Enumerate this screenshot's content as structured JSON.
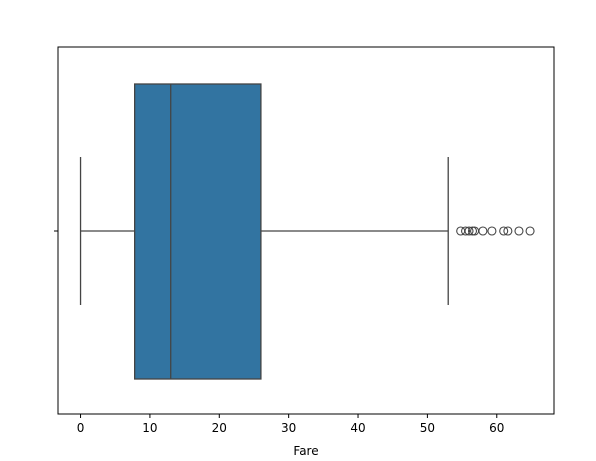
{
  "chart_data": {
    "type": "box",
    "xlabel": "Fare",
    "xlim": [
      -3.25,
      68.25
    ],
    "xticks": [
      0,
      10,
      20,
      30,
      40,
      50,
      60
    ],
    "color": "#3274a1",
    "line_color": "#444444",
    "whislo": 0,
    "q1": 7.8,
    "med": 13,
    "q3": 26,
    "whishi": 53,
    "fliers": [
      54.8,
      55.5,
      56,
      56.5,
      56.8,
      58,
      59.3,
      61,
      61.6,
      63.2,
      64.8
    ]
  }
}
